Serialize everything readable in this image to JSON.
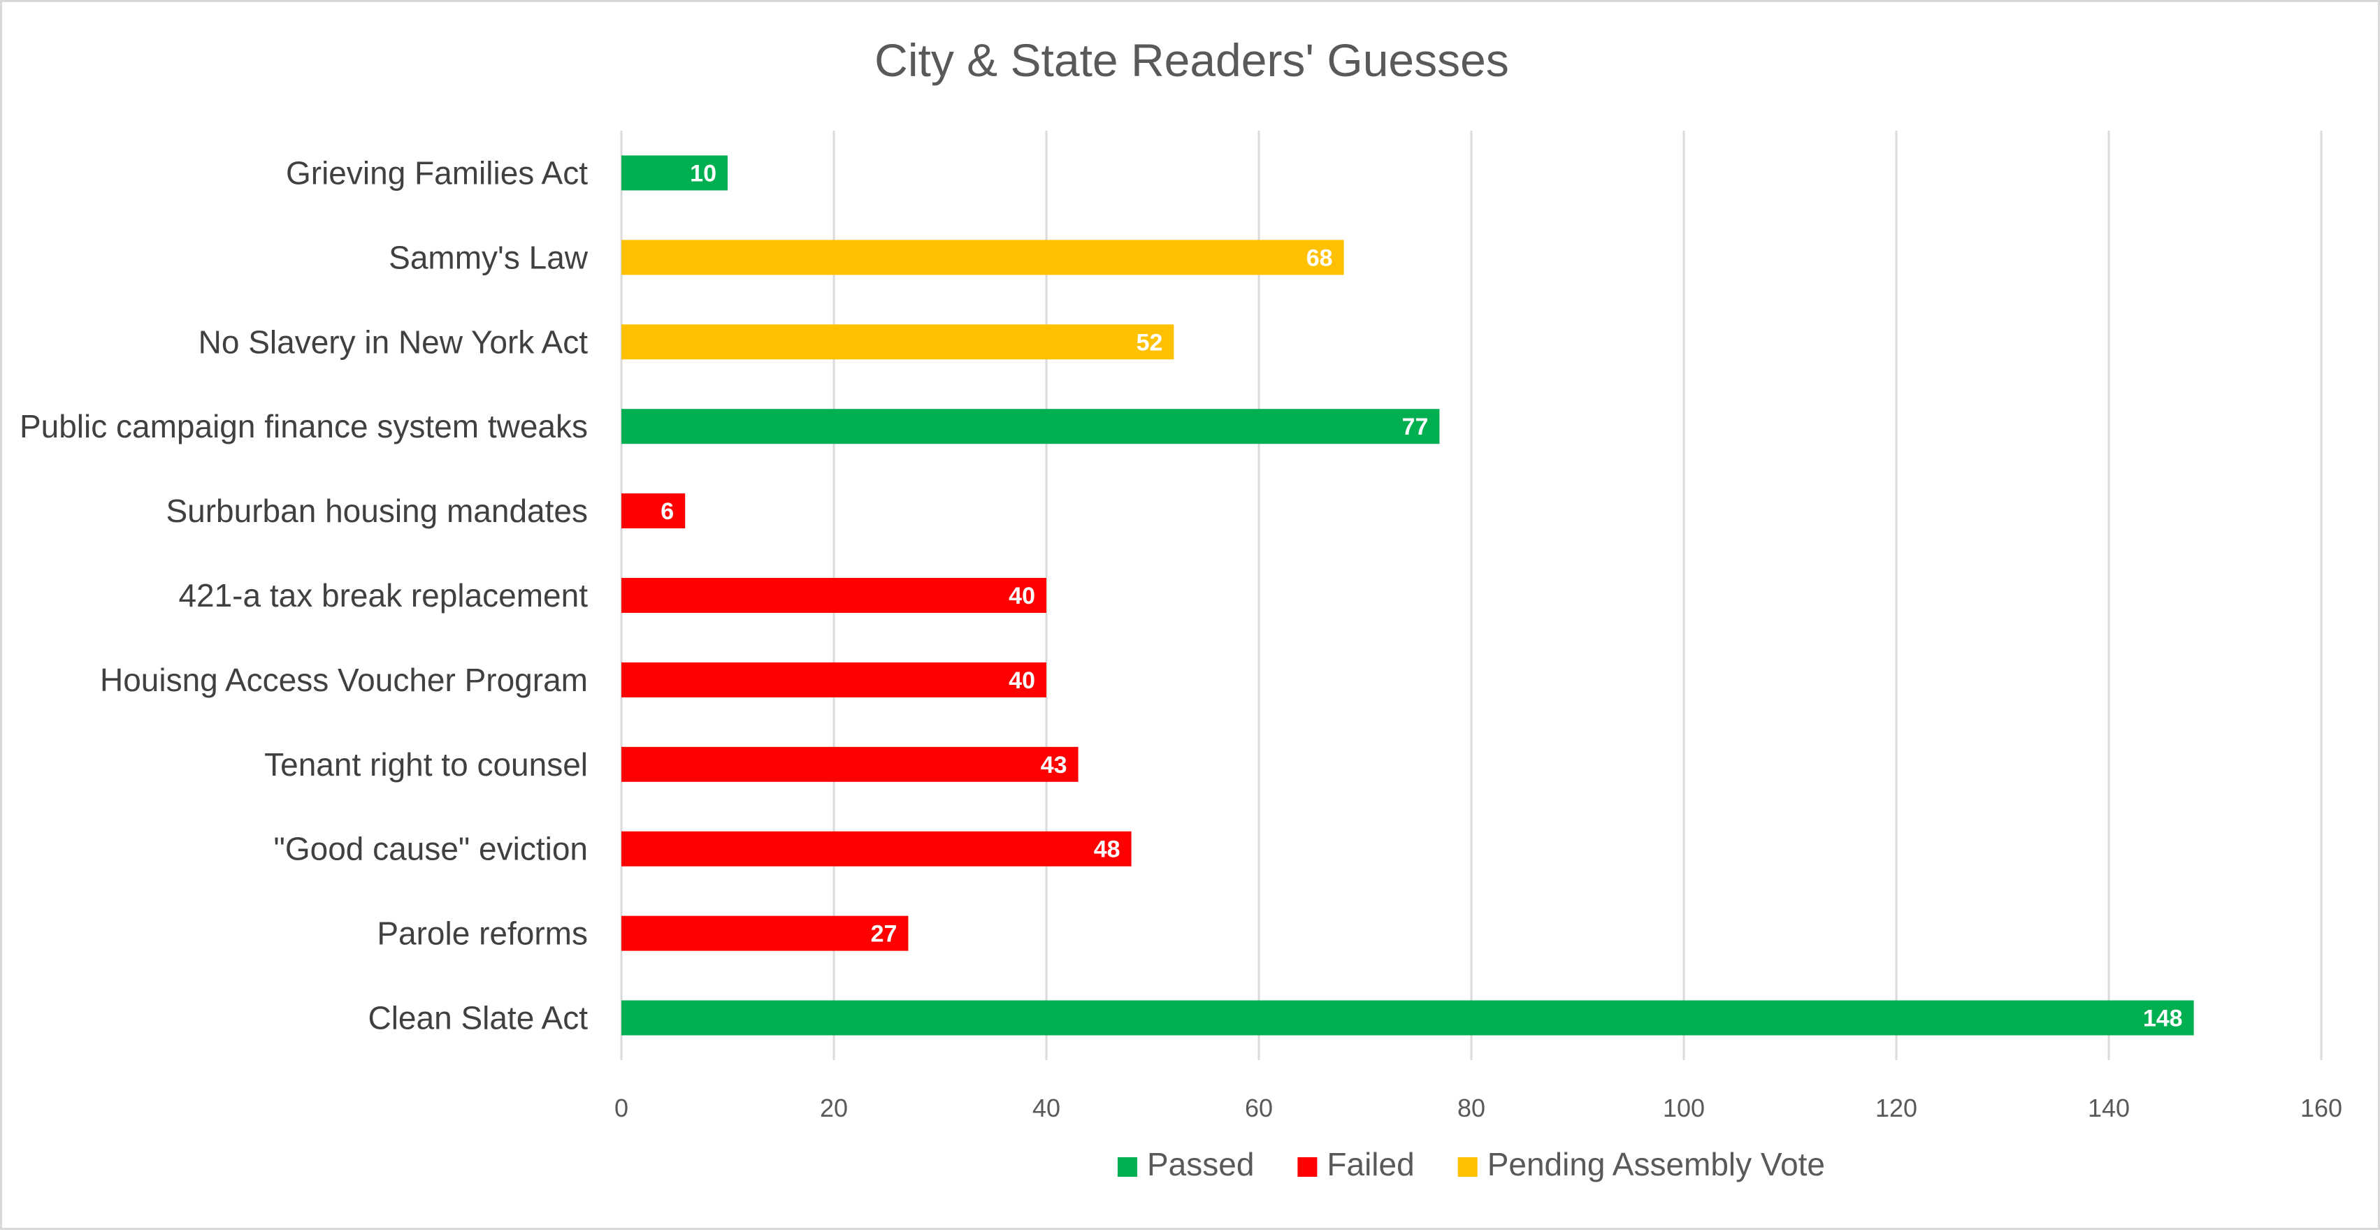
{
  "chart_data": {
    "type": "bar",
    "orientation": "horizontal",
    "title": "City & State Readers' Guesses",
    "xlabel": "",
    "ylabel": "",
    "xlim": [
      0,
      160
    ],
    "x_ticks": [
      0,
      20,
      40,
      60,
      80,
      100,
      120,
      140,
      160
    ],
    "grid": true,
    "legend_position": "bottom",
    "colors": {
      "passed": "#00b050",
      "failed": "#ff0000",
      "pending": "#ffc000"
    },
    "legend": [
      {
        "key": "passed",
        "label": "Passed"
      },
      {
        "key": "failed",
        "label": "Failed"
      },
      {
        "key": "pending",
        "label": "Pending Assembly Vote"
      }
    ],
    "categories": [
      "Grieving Families Act",
      "Sammy's Law",
      "No Slavery in New York Act",
      "Public campaign finance system tweaks",
      "Surburban housing mandates",
      "421-a tax break replacement",
      "Houisng Access Voucher Program",
      "Tenant right to counsel",
      "\"Good cause\" eviction",
      "Parole reforms",
      "Clean Slate Act"
    ],
    "values": [
      10,
      68,
      52,
      77,
      6,
      40,
      40,
      43,
      48,
      27,
      148
    ],
    "status": [
      "passed",
      "pending",
      "pending",
      "passed",
      "failed",
      "failed",
      "failed",
      "failed",
      "failed",
      "failed",
      "passed"
    ]
  }
}
